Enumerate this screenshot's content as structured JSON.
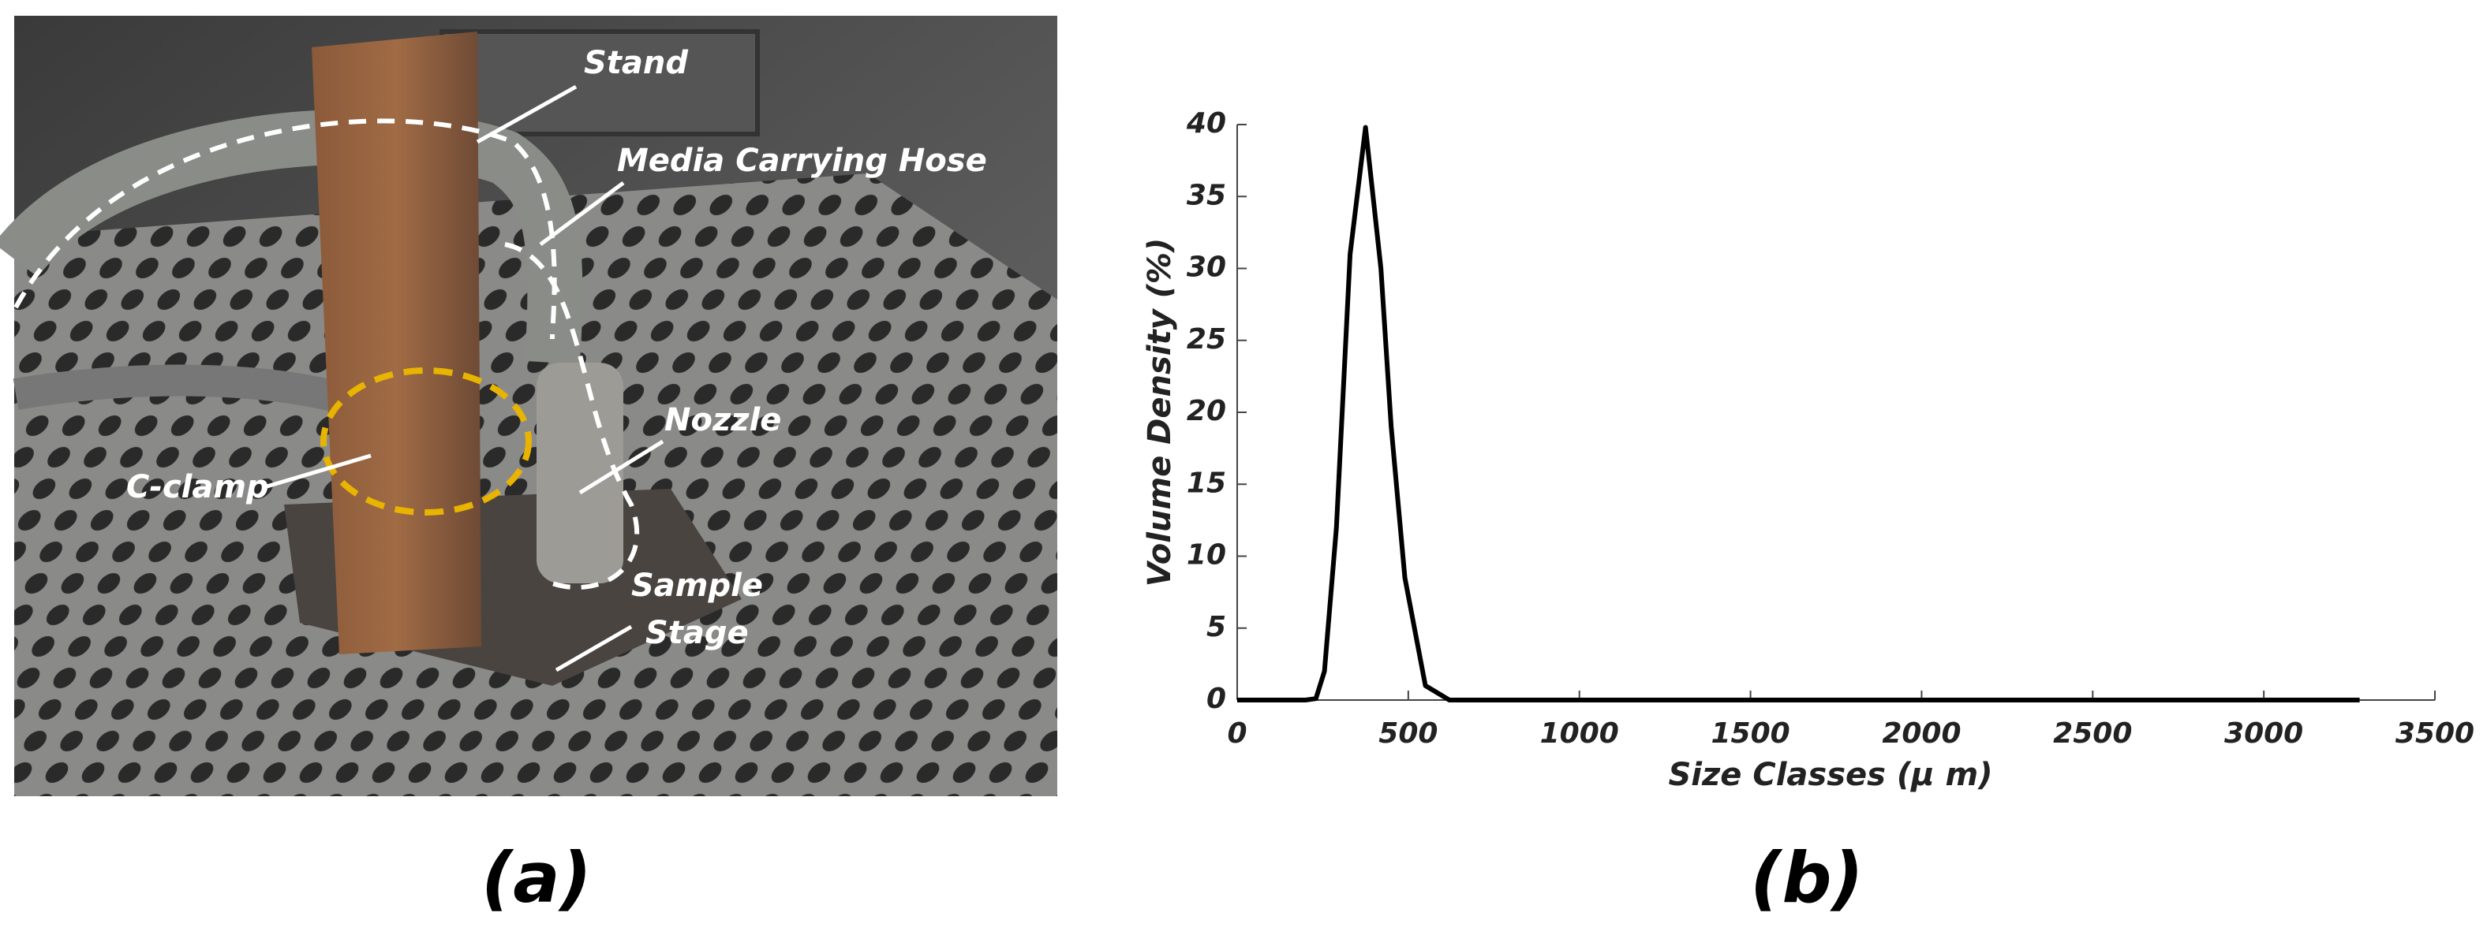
{
  "photo": {
    "labels": [
      "Stand",
      "Media Carrying Hose",
      "Nozzle",
      "C-clamp",
      "Sample",
      "Stage"
    ]
  },
  "captions": [
    "(a)",
    "(b)"
  ],
  "chart_data": {
    "type": "line",
    "xlabel": "Size Classes (μ m)",
    "ylabel": "Volume Density (%)",
    "x": [
      0,
      200,
      230,
      255,
      290,
      330,
      375,
      420,
      450,
      490,
      550,
      620,
      1000,
      2000,
      3280
    ],
    "values": [
      0,
      0,
      0.1,
      2,
      12,
      31,
      39.8,
      30,
      19,
      8.5,
      1,
      0,
      0,
      0,
      0
    ],
    "color": "#000000",
    "xlim": [
      0,
      3500
    ],
    "ylim": [
      0,
      40
    ],
    "xticks": [
      0,
      500,
      1000,
      1500,
      2000,
      2500,
      3000,
      3500
    ],
    "yticks": [
      0,
      5,
      10,
      15,
      20,
      25,
      30,
      35,
      40
    ]
  }
}
